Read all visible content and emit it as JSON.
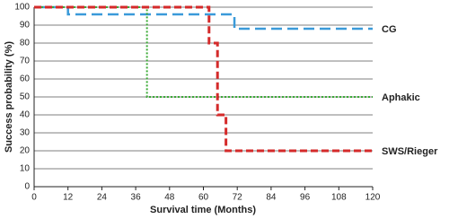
{
  "chart_data": {
    "type": "line",
    "xlabel": "Survival time (Months)",
    "ylabel": "Success probability (%)",
    "xlim": [
      0,
      120
    ],
    "xticks": [
      0,
      12,
      24,
      36,
      48,
      60,
      72,
      84,
      96,
      108,
      120
    ],
    "ylim": [
      0,
      100
    ],
    "yticks": [
      0,
      10,
      20,
      30,
      40,
      50,
      60,
      70,
      80,
      90,
      100
    ],
    "grid": true,
    "series": [
      {
        "name": "CG",
        "color": "#3a9ad9",
        "x": [
          0,
          12,
          12,
          71,
          71,
          120
        ],
        "values": [
          100,
          100,
          96,
          96,
          88,
          88
        ]
      },
      {
        "name": "Aphakic",
        "color": "#3aaa35",
        "x": [
          0,
          40,
          40,
          120
        ],
        "values": [
          100,
          100,
          50,
          50
        ]
      },
      {
        "name": "SWS/Rieger",
        "color": "#d42a2a",
        "x": [
          0,
          62,
          62,
          65,
          65,
          68,
          68,
          120
        ],
        "values": [
          100,
          100,
          80,
          80,
          40,
          40,
          20,
          20
        ]
      }
    ]
  }
}
